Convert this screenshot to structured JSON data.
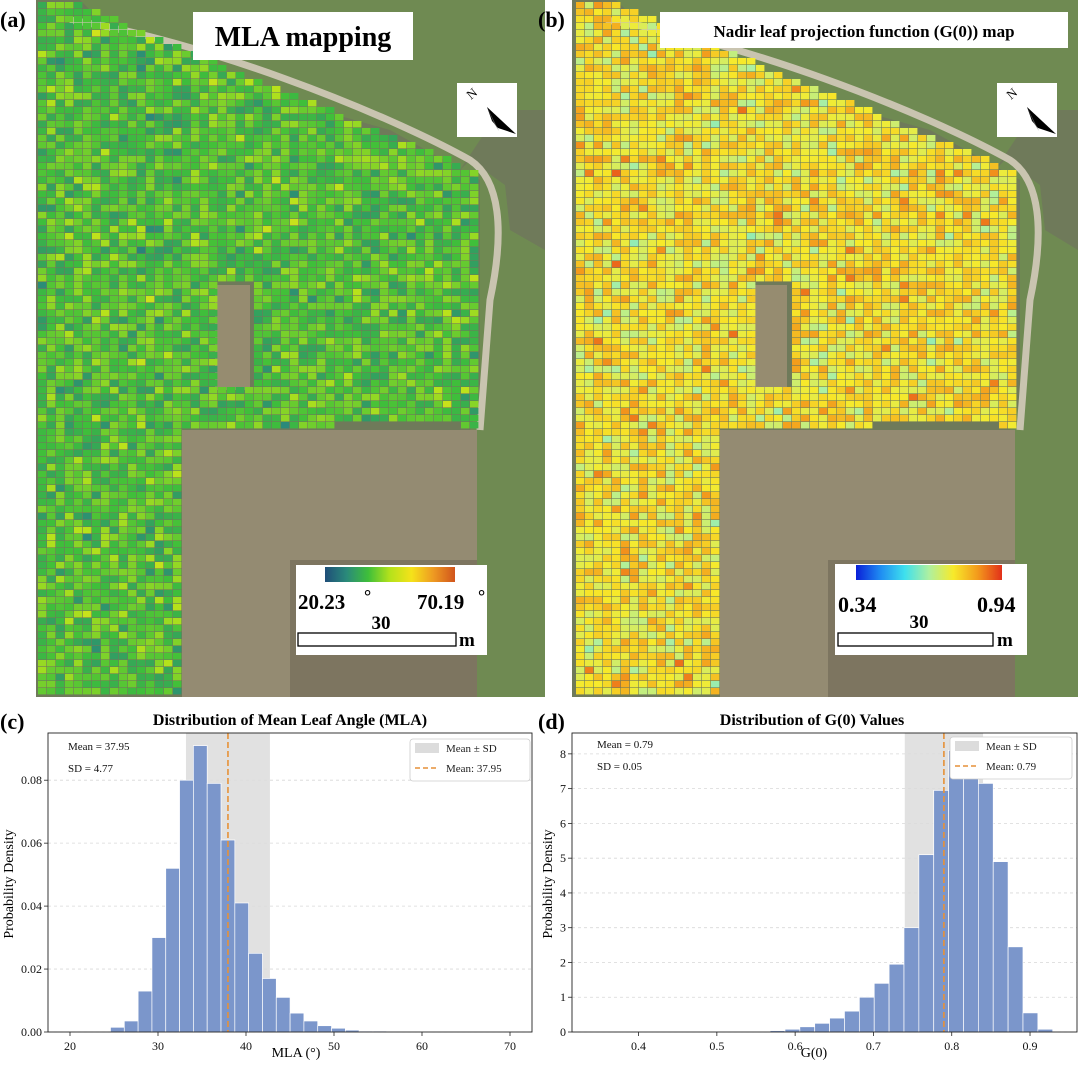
{
  "panel_a": {
    "label": "(a)",
    "title": "MLA mapping",
    "north": "N",
    "legend": {
      "min": "20.23",
      "max": "70.19",
      "deg_min": "°",
      "deg_max": "°",
      "scale": "30",
      "unit": "m"
    },
    "colors": [
      "#1f4e79",
      "#2a8a7a",
      "#3fbf3a",
      "#b5e21b",
      "#f5e21a",
      "#ee9a22",
      "#d1541c"
    ],
    "range": [
      20.23,
      70.19
    ]
  },
  "panel_b": {
    "label": "(b)",
    "title": "Nadir leaf projection function (G(0)) map",
    "north": "N",
    "legend": {
      "min": "0.34",
      "max": "0.94",
      "scale": "30",
      "unit": "m"
    },
    "colors": [
      "#0a1fd8",
      "#1f8cf2",
      "#3ee0ee",
      "#aef0a0",
      "#f7ea2a",
      "#f39a1c",
      "#e2301a"
    ],
    "range": [
      0.34,
      0.94
    ]
  },
  "chart_data": [
    {
      "type": "bar",
      "panel_label": "(c)",
      "title": "Distribution of Mean Leaf Angle (MLA)",
      "xlabel": "MLA (°)",
      "ylabel": "Probability Density",
      "xlim": [
        17.5,
        72.5
      ],
      "ylim": [
        0,
        0.095
      ],
      "xticks": [
        20,
        30,
        40,
        50,
        60,
        70
      ],
      "yticks": [
        0.0,
        0.02,
        0.04,
        0.06,
        0.08
      ],
      "ytick_labels": [
        "0.00",
        "0.02",
        "0.04",
        "0.06",
        "0.08"
      ],
      "bin_edges": [
        24.6,
        26.17,
        27.74,
        29.31,
        30.88,
        32.45,
        34.02,
        35.59,
        37.16,
        38.73,
        40.3,
        41.87,
        43.44,
        45.01,
        46.58,
        48.15,
        49.72,
        51.29,
        52.86,
        54.43,
        56.0,
        57.57,
        59.14,
        60.71,
        62.28,
        63.85,
        65.42,
        66.99,
        68.56,
        70.13
      ],
      "values": [
        0.0015,
        0.0035,
        0.013,
        0.03,
        0.052,
        0.08,
        0.091,
        0.079,
        0.061,
        0.041,
        0.025,
        0.017,
        0.011,
        0.006,
        0.0035,
        0.002,
        0.0012,
        0.0006,
        0.0003,
        0.0003,
        0.0002,
        0.0001,
        0.0001,
        0.0001,
        0.0001,
        0.0001,
        0.0001,
        0.0001,
        0.0001
      ],
      "mean": 37.95,
      "sd": 4.77,
      "stats_mean": "Mean = 37.95",
      "stats_sd": "SD = 4.77",
      "legend_band": "Mean ± SD",
      "legend_line": "Mean: 37.95",
      "bar_color": "#7b96cb",
      "band_color": "#dcdcdc",
      "mean_color": "#e69138"
    },
    {
      "type": "bar",
      "panel_label": "(d)",
      "title": "Distribution of G(0) Values",
      "xlabel": "G(0)",
      "ylabel": "Probability Density",
      "xlim": [
        0.315,
        0.96
      ],
      "ylim": [
        0,
        8.6
      ],
      "xticks": [
        0.4,
        0.5,
        0.6,
        0.7,
        0.8,
        0.9
      ],
      "xtick_labels": [
        "0.4",
        "0.5",
        "0.6",
        "0.7",
        "0.8",
        "0.9"
      ],
      "yticks": [
        0,
        1,
        2,
        3,
        4,
        5,
        6,
        7,
        8
      ],
      "ytick_labels": [
        "0",
        "1",
        "2",
        "3",
        "4",
        "5",
        "6",
        "7",
        "8"
      ],
      "bin_edges": [
        0.34,
        0.359,
        0.378,
        0.397,
        0.416,
        0.435,
        0.454,
        0.473,
        0.492,
        0.511,
        0.53,
        0.549,
        0.568,
        0.587,
        0.606,
        0.625,
        0.644,
        0.663,
        0.682,
        0.701,
        0.72,
        0.739,
        0.758,
        0.777,
        0.796,
        0.815,
        0.834,
        0.853,
        0.872,
        0.891,
        0.91,
        0.929
      ],
      "values": [
        0.01,
        0.01,
        0.01,
        0.01,
        0.01,
        0.01,
        0.01,
        0.01,
        0.01,
        0.01,
        0.01,
        0.02,
        0.04,
        0.08,
        0.15,
        0.25,
        0.4,
        0.6,
        1.0,
        1.4,
        1.95,
        3.0,
        5.1,
        6.95,
        8.1,
        8.1,
        7.15,
        4.9,
        2.45,
        0.55,
        0.08
      ],
      "mean": 0.79,
      "sd": 0.05,
      "stats_mean": "Mean = 0.79",
      "stats_sd": "SD = 0.05",
      "legend_band": "Mean ± SD",
      "legend_line": "Mean: 0.79",
      "bar_color": "#7b96cb",
      "band_color": "#dcdcdc",
      "mean_color": "#e69138"
    }
  ]
}
